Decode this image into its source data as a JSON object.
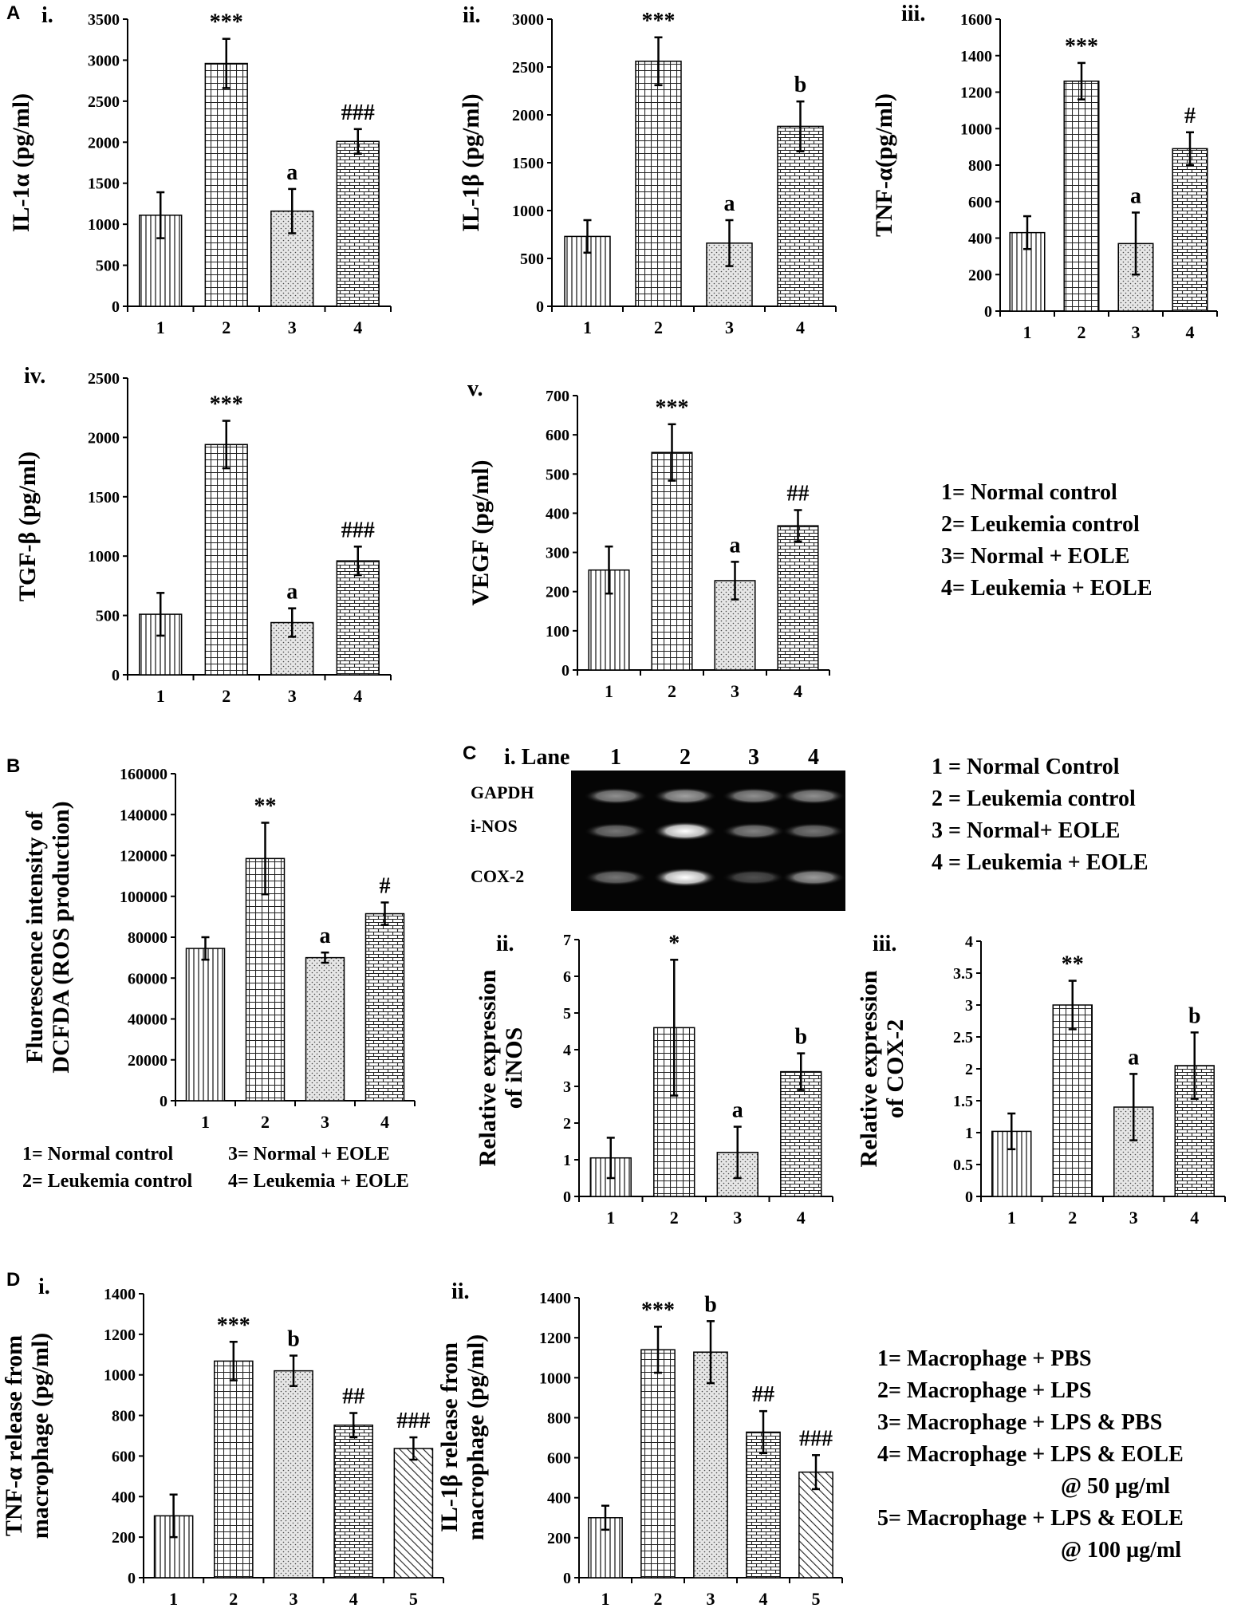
{
  "sections": [
    "A",
    "B",
    "C",
    "D"
  ],
  "gel": {
    "lane_header": "i. Lane",
    "lanes": [
      "1",
      "2",
      "3",
      "4"
    ],
    "bands": [
      "GAPDH",
      "i-NOS",
      "COX-2"
    ],
    "intensity": [
      [
        0.55,
        0.62,
        0.55,
        0.55
      ],
      [
        0.45,
        1.0,
        0.5,
        0.45
      ],
      [
        0.45,
        1.0,
        0.3,
        0.6
      ]
    ]
  },
  "legends": {
    "A": [
      "1= Normal control",
      "2= Leukemia control",
      "3= Normal + EOLE",
      "4= Leukemia + EOLE"
    ],
    "B": [
      "1= Normal control",
      "3= Normal + EOLE",
      "2= Leukemia control",
      "4= Leukemia + EOLE"
    ],
    "C": [
      "1 = Normal Control",
      "2 = Leukemia control",
      "3 = Normal+ EOLE",
      "4 = Leukemia + EOLE"
    ],
    "D": [
      "1= Macrophage + PBS",
      "2= Macrophage + LPS",
      "3= Macrophage + LPS & PBS",
      "4= Macrophage + LPS & EOLE",
      "@ 50 µg/ml",
      "5= Macrophage + LPS & EOLE",
      "@ 100 µg/ml"
    ]
  },
  "chart_data": [
    {
      "id": "A-i",
      "panel_label": "i.",
      "type": "bar",
      "ylabel": "IL-1α (pg/ml)",
      "categories": [
        "1",
        "2",
        "3",
        "4"
      ],
      "ylim": [
        0,
        3500
      ],
      "yticks": [
        0,
        500,
        1000,
        1500,
        2000,
        2500,
        3000,
        3500
      ],
      "values": [
        1110,
        2960,
        1160,
        2010
      ],
      "errors": [
        280,
        300,
        270,
        150
      ],
      "annotations": [
        "",
        "***",
        "a",
        "###"
      ]
    },
    {
      "id": "A-ii",
      "panel_label": "ii.",
      "type": "bar",
      "ylabel": "IL-1β (pg/ml)",
      "categories": [
        "1",
        "2",
        "3",
        "4"
      ],
      "ylim": [
        0,
        3000
      ],
      "yticks": [
        0,
        500,
        1000,
        1500,
        2000,
        2500,
        3000
      ],
      "values": [
        730,
        2560,
        660,
        1880
      ],
      "errors": [
        170,
        250,
        240,
        260
      ],
      "annotations": [
        "",
        "***",
        "a",
        "b"
      ]
    },
    {
      "id": "A-iii",
      "panel_label": "iii.",
      "type": "bar",
      "ylabel": "TNF-α(pg/ml)",
      "categories": [
        "1",
        "2",
        "3",
        "4"
      ],
      "ylim": [
        0,
        1600
      ],
      "yticks": [
        0,
        200,
        400,
        600,
        800,
        1000,
        1200,
        1400,
        1600
      ],
      "values": [
        430,
        1260,
        370,
        890
      ],
      "errors": [
        90,
        100,
        170,
        90
      ],
      "annotations": [
        "",
        "***",
        "a",
        "#"
      ]
    },
    {
      "id": "A-iv",
      "panel_label": "iv.",
      "type": "bar",
      "ylabel": "TGF-β (pg/ml)",
      "categories": [
        "1",
        "2",
        "3",
        "4"
      ],
      "ylim": [
        0,
        2500
      ],
      "yticks": [
        0,
        500,
        1000,
        1500,
        2000,
        2500
      ],
      "values": [
        510,
        1940,
        440,
        960
      ],
      "errors": [
        180,
        200,
        120,
        120
      ],
      "annotations": [
        "",
        "***",
        "a",
        "###"
      ]
    },
    {
      "id": "A-v",
      "panel_label": "v.",
      "type": "bar",
      "ylabel": "VEGF (pg/ml)",
      "categories": [
        "1",
        "2",
        "3",
        "4"
      ],
      "ylim": [
        0,
        700
      ],
      "yticks": [
        0,
        100,
        200,
        300,
        400,
        500,
        600,
        700
      ],
      "values": [
        255,
        555,
        228,
        368
      ],
      "errors": [
        60,
        72,
        48,
        40
      ],
      "annotations": [
        "",
        "***",
        "a",
        "##"
      ]
    },
    {
      "id": "B",
      "panel_label": "",
      "type": "bar",
      "ylabel": [
        "Fluorescence intensity of",
        "DCFDA (ROS production)"
      ],
      "categories": [
        "1",
        "2",
        "3",
        "4"
      ],
      "ylim": [
        0,
        160000
      ],
      "yticks": [
        0,
        20000,
        40000,
        60000,
        80000,
        100000,
        120000,
        140000,
        160000
      ],
      "values": [
        74500,
        118500,
        70000,
        91500
      ],
      "errors": [
        5500,
        17500,
        2500,
        5500
      ],
      "annotations": [
        "",
        "**",
        "a",
        "#"
      ]
    },
    {
      "id": "C-ii",
      "panel_label": "ii.",
      "type": "bar",
      "ylabel": [
        "Relative expression",
        "of iNOS"
      ],
      "categories": [
        "1",
        "2",
        "3",
        "4"
      ],
      "ylim": [
        0,
        7
      ],
      "yticks": [
        0,
        1,
        2,
        3,
        4,
        5,
        6,
        7
      ],
      "values": [
        1.05,
        4.6,
        1.2,
        3.4
      ],
      "errors": [
        0.55,
        1.85,
        0.7,
        0.5
      ],
      "annotations": [
        "",
        "*",
        "a",
        "b"
      ]
    },
    {
      "id": "C-iii",
      "panel_label": "iii.",
      "type": "bar",
      "ylabel": [
        "Relative expression",
        "of COX-2"
      ],
      "categories": [
        "1",
        "2",
        "3",
        "4"
      ],
      "ylim": [
        0,
        4
      ],
      "yticks": [
        "0",
        "0.5",
        "1",
        "1.5",
        "2",
        "2.5",
        "3",
        "3.5",
        "4"
      ],
      "values": [
        1.02,
        3.0,
        1.4,
        2.05
      ],
      "errors": [
        0.28,
        0.38,
        0.52,
        0.52
      ],
      "annotations": [
        "",
        "**",
        "a",
        "b"
      ]
    },
    {
      "id": "D-i",
      "panel_label": "i.",
      "type": "bar",
      "ylabel": [
        "TNF-α release from",
        "macrophage (pg/ml)"
      ],
      "categories": [
        "1",
        "2",
        "3",
        "4",
        "5"
      ],
      "ylim": [
        0,
        1400
      ],
      "yticks": [
        0,
        200,
        400,
        600,
        800,
        1000,
        1200,
        1400
      ],
      "values": [
        305,
        1068,
        1020,
        752,
        637
      ],
      "errors": [
        105,
        95,
        75,
        60,
        55
      ],
      "annotations": [
        "",
        "***",
        "b",
        "##",
        "###"
      ]
    },
    {
      "id": "D-ii",
      "panel_label": "ii.",
      "type": "bar",
      "ylabel": [
        "IL-1β release from",
        "macrophage (pg/ml)"
      ],
      "categories": [
        "1",
        "2",
        "3",
        "4",
        "5"
      ],
      "ylim": [
        0,
        1400
      ],
      "yticks": [
        0,
        200,
        400,
        600,
        800,
        1000,
        1200,
        1400
      ],
      "values": [
        300,
        1140,
        1128,
        728,
        528
      ],
      "errors": [
        60,
        115,
        155,
        105,
        85
      ],
      "annotations": [
        "",
        "***",
        "b",
        "##",
        "###"
      ]
    }
  ]
}
